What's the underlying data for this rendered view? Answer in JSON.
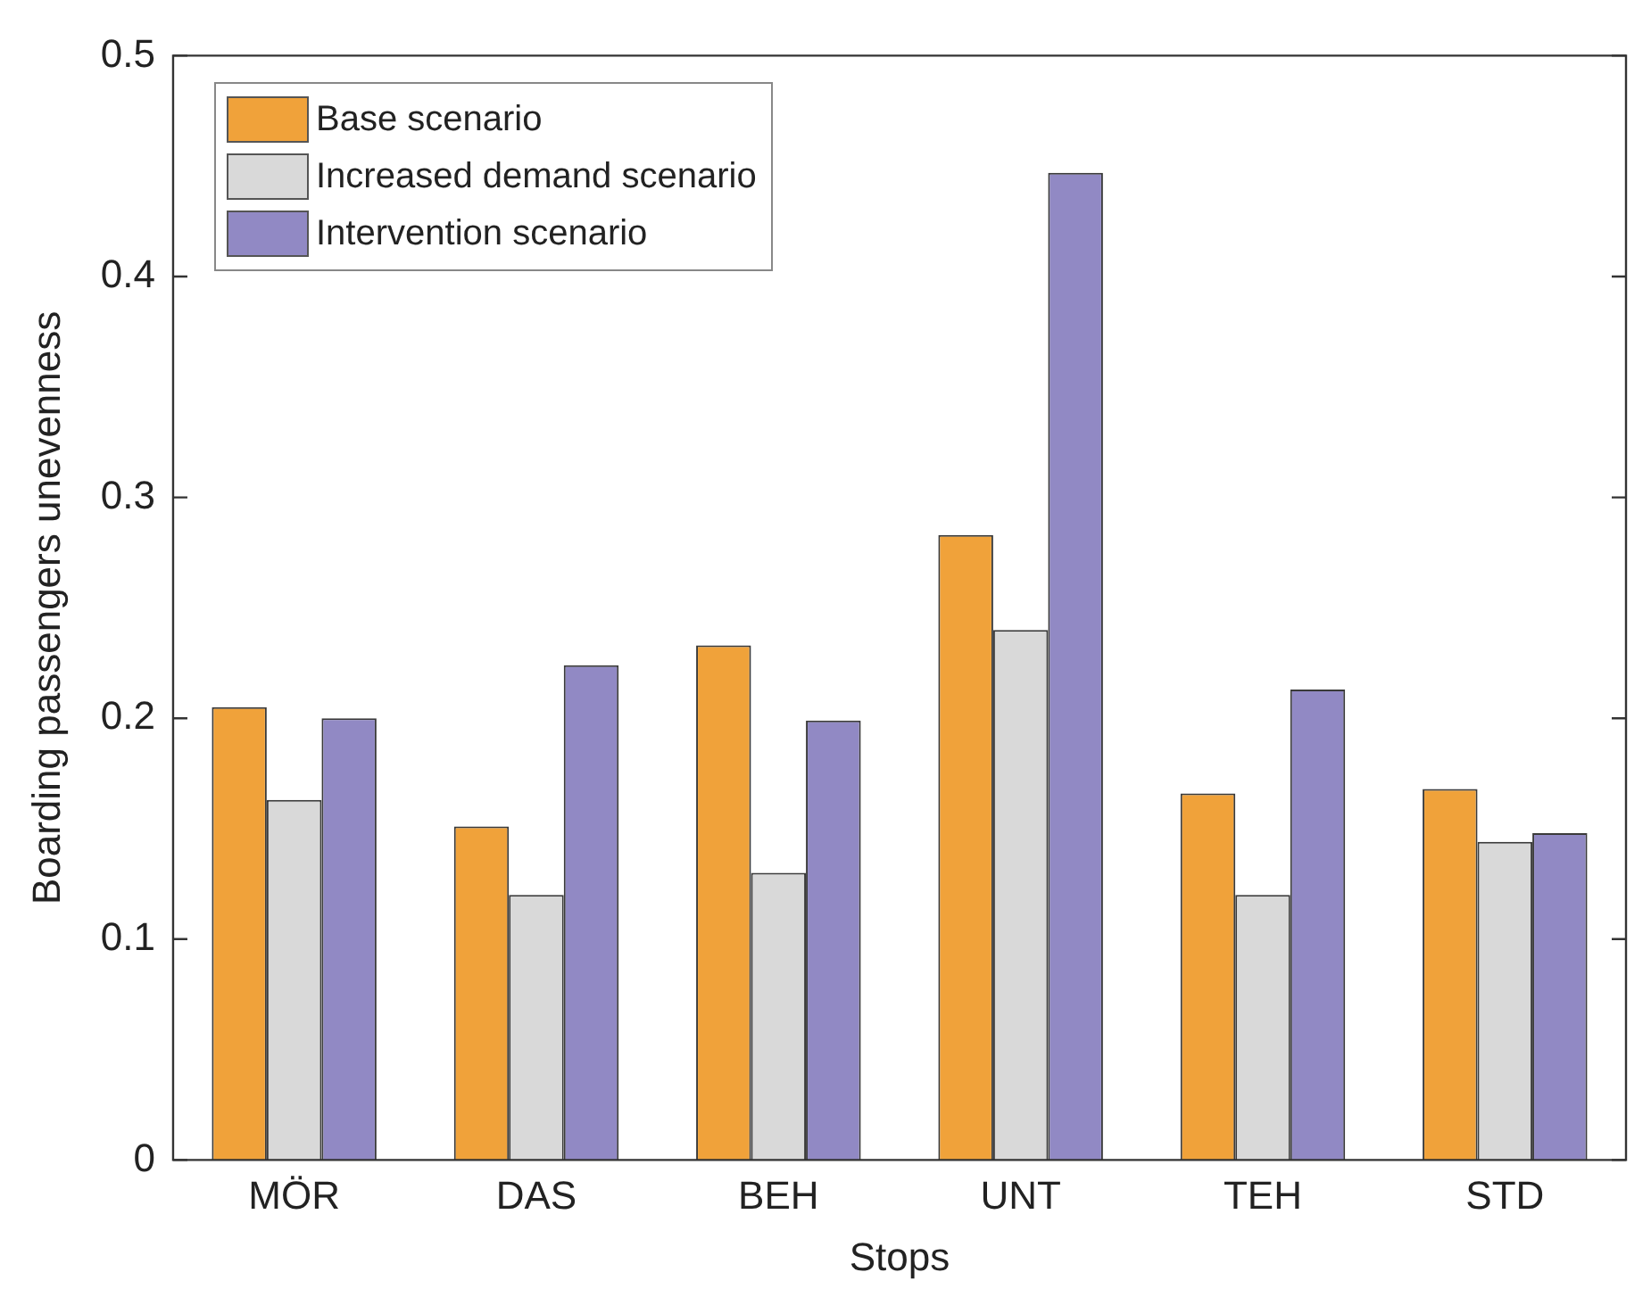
{
  "chart_data": {
    "type": "bar",
    "xlabel": "Stops",
    "ylabel": "Boarding passengers unevenness",
    "categories": [
      "MÖR",
      "DAS",
      "BEH",
      "UNT",
      "TEH",
      "STD"
    ],
    "series": [
      {
        "name": "Base scenario",
        "color": "#f0a23a",
        "values": [
          0.205,
          0.151,
          0.233,
          0.283,
          0.166,
          0.168
        ]
      },
      {
        "name": "Increased demand scenario",
        "color": "#d9d9d9",
        "values": [
          0.163,
          0.12,
          0.13,
          0.24,
          0.12,
          0.144
        ]
      },
      {
        "name": "Intervention scenario",
        "color": "#9189c4",
        "values": [
          0.2,
          0.224,
          0.199,
          0.447,
          0.213,
          0.148
        ]
      }
    ],
    "ylim": [
      0,
      0.5
    ],
    "yticks": [
      0,
      0.1,
      0.2,
      0.3,
      0.4,
      0.5
    ],
    "grid": false,
    "legend": "top left"
  }
}
